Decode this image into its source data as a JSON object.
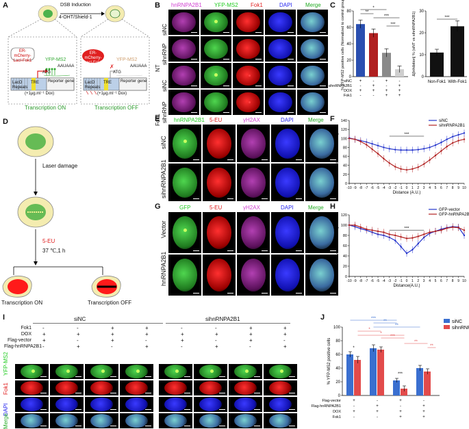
{
  "panels": {
    "A": "A",
    "B": "B",
    "C": "C",
    "D": "D",
    "E": "E",
    "F": "F",
    "G": "G",
    "H": "H",
    "I": "I",
    "J": "J"
  },
  "a": {
    "top_label": "DSB Induction",
    "top_sub": "4-OHT/Shield-1",
    "left_protein": "ER-mCherry-LacI-Fok1",
    "right_protein": "ER-mCherry-LacI-Fok1",
    "yfp_left": "YFP-MS2",
    "yfp_right": "YFP-MS2",
    "lacO": "LacO Repeats",
    "tre": "TRE",
    "atg": "ATG",
    "reporter": "Reporter gene",
    "polya": "AAUAAA",
    "dox": "(+1μg.ml⁻¹ Dox)",
    "on": "Transcription ON",
    "off": "Transcription OFF"
  },
  "b": {
    "cols": [
      "hnRNPA2B1",
      "YFP-MS2",
      "Fok1",
      "DAPI",
      "Merge"
    ],
    "group_labels": [
      "NT",
      "Fok1"
    ],
    "row_labels": [
      "siNC",
      "sihnRNP",
      "siNC",
      "sihnRNP"
    ]
  },
  "c": {
    "ylabel": "% YFP-MS2 positive cells (Normalized to control group)",
    "row_names": [
      "siNC",
      "sihnRNPA2B1",
      "DOX",
      "Fok1"
    ],
    "row_signs": [
      [
        "+",
        "-",
        "+",
        "-"
      ],
      [
        "-",
        "+",
        "-",
        "+"
      ],
      [
        "+",
        "+",
        "+",
        "+"
      ],
      [
        "-",
        "-",
        "+",
        "+"
      ]
    ],
    "yticks": [
      "0",
      "20",
      "40",
      "60",
      "80"
    ],
    "sig": [
      "**",
      "*",
      "***",
      "***"
    ],
    "chart_data": {
      "type": "bar",
      "categories": [
        "1",
        "2",
        "3",
        "4"
      ],
      "values": [
        64,
        53,
        29,
        9
      ],
      "errors": [
        5,
        5,
        5,
        4
      ],
      "colors": [
        "#2a4fb0",
        "#b02020",
        "#8a8a8a",
        "#cfcfcf"
      ],
      "ylim": [
        0,
        80
      ]
    }
  },
  "c2": {
    "ylabel": "Δ[Inhibition] % (siNT vs sihnRNPA2B1)",
    "categories": [
      "Non-Fok1",
      "With-Fok1"
    ],
    "yticks": [
      "0",
      "10",
      "20",
      "30"
    ],
    "sig": "***",
    "chart_data": {
      "type": "bar",
      "categories": [
        "Non-Fok1",
        "With-Fok1"
      ],
      "values": [
        11,
        23
      ],
      "errors": [
        1.5,
        2.5
      ],
      "ylim": [
        0,
        30
      ]
    }
  },
  "d": {
    "laser": "Laser damage",
    "eu": "5-EU",
    "temp": "37 ℃,1 h",
    "on": "Transcription ON",
    "off": "Transcription OFF"
  },
  "e": {
    "cols": [
      "hnRNPA2B1",
      "5-EU",
      "γH2AX",
      "DAPI",
      "Merge"
    ],
    "rows": [
      "siNC",
      "sihnRNPA2B1"
    ]
  },
  "f": {
    "ylabel": "Relative 5-EU Intensity",
    "xlabel": "Distance (A.U.)",
    "sig": "***",
    "legend": [
      "siNC",
      "sihnRNPA2B1"
    ],
    "chart_data": {
      "type": "line",
      "x": [
        -10,
        -9,
        -8,
        -7,
        -6,
        -5,
        -4,
        -3,
        -2,
        -1,
        0,
        1,
        2,
        3,
        4,
        5,
        6,
        7,
        8,
        9,
        10
      ],
      "series": [
        {
          "name": "siNC",
          "color": "#2233cc",
          "values": [
            101,
            98,
            95,
            92,
            88,
            84,
            80,
            77,
            75,
            74,
            74,
            74,
            75,
            77,
            80,
            85,
            91,
            98,
            104,
            108,
            112
          ]
        },
        {
          "name": "sihnRNPA2B1",
          "color": "#b22222",
          "values": [
            100,
            98,
            93,
            86,
            76,
            66,
            55,
            45,
            37,
            32,
            30,
            32,
            36,
            43,
            52,
            62,
            72,
            82,
            90,
            95,
            98
          ]
        }
      ],
      "ylim": [
        0,
        140
      ],
      "yticks": [
        0,
        20,
        40,
        60,
        80,
        100,
        120,
        140
      ]
    }
  },
  "g": {
    "cols": [
      "GFP",
      "5-EU",
      "γH2AX",
      "DAPI",
      "Merge"
    ],
    "rows": [
      "Vector",
      "hnRNPA2B1"
    ]
  },
  "h": {
    "ylabel": "Relative 5-EU Intensity",
    "xlabel": "Distance(A.U.)",
    "sig": "***",
    "legend": [
      "GFP-vector",
      "GFP-hnRNPA2B1"
    ],
    "chart_data": {
      "type": "line",
      "x": [
        -10,
        -9,
        -8,
        -7,
        -6,
        -5,
        -4,
        -3,
        -2,
        -1,
        0,
        1,
        2,
        3,
        4,
        5,
        6,
        7,
        8,
        9,
        10
      ],
      "series": [
        {
          "name": "GFP-vector",
          "color": "#2233cc",
          "values": [
            100,
            97,
            93,
            90,
            86,
            82,
            80,
            76,
            70,
            58,
            45,
            52,
            64,
            76,
            84,
            88,
            92,
            95,
            97,
            96,
            80
          ]
        },
        {
          "name": "GFP-hnRNPA2B1",
          "color": "#b22222",
          "values": [
            100,
            100,
            96,
            92,
            90,
            88,
            86,
            82,
            80,
            77,
            74,
            75,
            78,
            82,
            86,
            88,
            90,
            94,
            96,
            95,
            90
          ]
        }
      ],
      "ylim": [
        0,
        120
      ],
      "yticks": [
        0,
        20,
        40,
        60,
        80,
        100,
        120
      ]
    }
  },
  "i": {
    "groups": [
      "siNC",
      "sihnRNPA2B1"
    ],
    "cond_names": [
      "Fok1",
      "DOX",
      "Flag-vector",
      "Flag-hnRNPA2B1"
    ],
    "cond_signs": [
      [
        "-",
        "-",
        "+",
        "+"
      ],
      [
        "+",
        "+",
        "+",
        "+"
      ],
      [
        "+",
        "-",
        "+",
        "-"
      ],
      [
        "-",
        "+",
        "-",
        "+"
      ]
    ],
    "rows": [
      "YFP-MS2",
      "Fok1",
      "DAPI",
      "Merge"
    ]
  },
  "j": {
    "ylabel": "% YFP-MS2 positive cells",
    "legend": [
      "siNC",
      "sihnRNPA2B1"
    ],
    "row_names": [
      "Flag-vector",
      "Flag-hnRNPA2B1",
      "DOX",
      "Fok1"
    ],
    "row_signs": [
      [
        "+",
        "-",
        "+",
        "-"
      ],
      [
        "-",
        "+",
        "-",
        "+"
      ],
      [
        "+",
        "+",
        "+",
        "+"
      ],
      [
        "-",
        "-",
        "+",
        "+"
      ]
    ],
    "yticks": [
      "0",
      "20",
      "40",
      "60",
      "80",
      "100"
    ],
    "sig_blue": [
      "***",
      "**",
      "**"
    ],
    "sig_red": [
      "*",
      "*",
      "***",
      "**",
      "**"
    ],
    "sig_inner": [
      "*",
      "***"
    ],
    "chart_data": {
      "type": "bar",
      "categories": [
        "1",
        "2",
        "3",
        "4"
      ],
      "series": [
        {
          "name": "siNC",
          "color": "#3a6fd0",
          "values": [
            60,
            69,
            22,
            40
          ],
          "errors": [
            4,
            5,
            3,
            4
          ]
        },
        {
          "name": "sihnRNPA2B1",
          "color": "#e24b4b",
          "values": [
            52,
            67,
            10,
            35
          ],
          "errors": [
            5,
            4,
            4,
            4
          ]
        }
      ],
      "ylim": [
        0,
        100
      ]
    }
  }
}
